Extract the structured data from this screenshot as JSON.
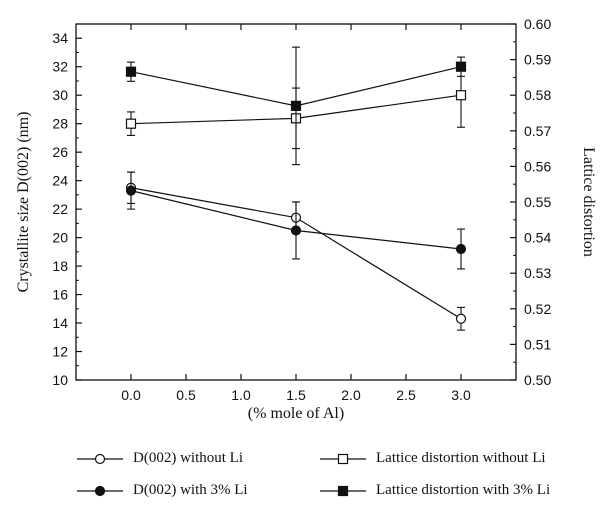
{
  "chart_data": {
    "type": "line",
    "x": [
      0.0,
      1.5,
      3.0
    ],
    "xlabel": "(% mole of Al)",
    "ylabel": "Crystallite size D(002) (nm)",
    "y2label": "Lattice distortion",
    "xlim": [
      -0.5,
      3.5
    ],
    "ylim": [
      10,
      35
    ],
    "y2lim": [
      0.5,
      0.6
    ],
    "xticks": [
      "0.0",
      "0.5",
      "1.0",
      "1.5",
      "2.0",
      "2.5",
      "3.0"
    ],
    "yticks": [
      "10",
      "12",
      "14",
      "16",
      "18",
      "20",
      "22",
      "24",
      "26",
      "28",
      "30",
      "32",
      "34"
    ],
    "y2ticks": [
      "0.50",
      "0.51",
      "0.52",
      "0.53",
      "0.54",
      "0.55",
      "0.56",
      "0.57",
      "0.58",
      "0.59",
      "0.60"
    ],
    "grid": false,
    "legend_position": "bottom",
    "series": [
      {
        "name": "D(002) without Li",
        "axis": "left",
        "marker": "open-circle",
        "values": [
          23.5,
          21.4,
          14.3
        ],
        "error": [
          1.1,
          1.1,
          0.8
        ]
      },
      {
        "name": "D(002) with 3% Li",
        "axis": "left",
        "marker": "filled-circle",
        "values": [
          23.3,
          20.5,
          19.2
        ],
        "error": [
          1.3,
          2.0,
          1.4
        ]
      },
      {
        "name": "Lattice distortion without Li",
        "axis": "right",
        "marker": "open-square",
        "values": [
          0.572,
          0.5735,
          0.58
        ],
        "error": [
          0.0033,
          0.0085,
          0.009
        ]
      },
      {
        "name": "Lattice distortion with 3% Li",
        "axis": "right",
        "marker": "filled-square",
        "values": [
          0.5866,
          0.577,
          0.588
        ],
        "error": [
          0.0027,
          0.0165,
          0.0027
        ]
      }
    ]
  }
}
